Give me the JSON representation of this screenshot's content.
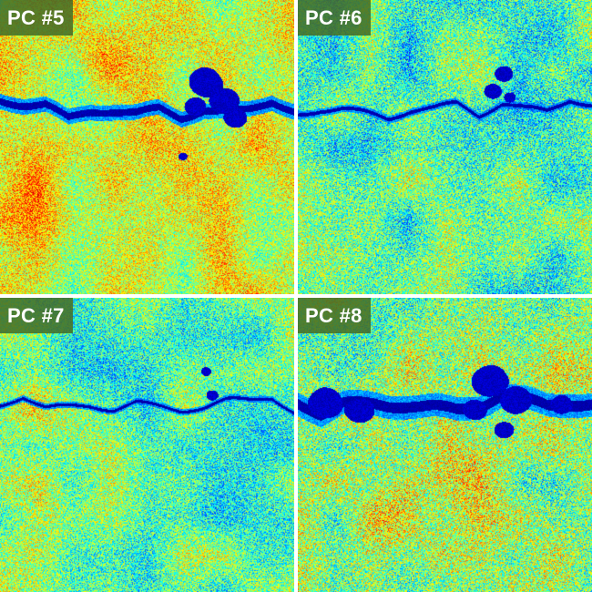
{
  "panels": [
    {
      "label": "PC #5",
      "rendering": "false-color jet colormap principal component image of river landscape; large dark-blue water body top-right, river crossing horizontally",
      "dominant_color": "#7ad65a"
    },
    {
      "label": "PC #6",
      "rendering": "false-color jet colormap, noisier cyan/blue texture, river as thin dark line with red margins",
      "dominant_color": "#3fb8b0"
    },
    {
      "label": "PC #7",
      "rendering": "false-color jet colormap, cyan/green noise with reddish left area, thin dark river line",
      "dominant_color": "#49b7a0"
    },
    {
      "label": "PC #8",
      "rendering": "false-color jet colormap, strong dark-blue water regions left and top-right, green/yellow land, red speckles",
      "dominant_color": "#6ccf6a"
    }
  ],
  "colors": {
    "separator": "#ffffff",
    "label_background": "#466e28",
    "label_text": "#ffffff"
  }
}
